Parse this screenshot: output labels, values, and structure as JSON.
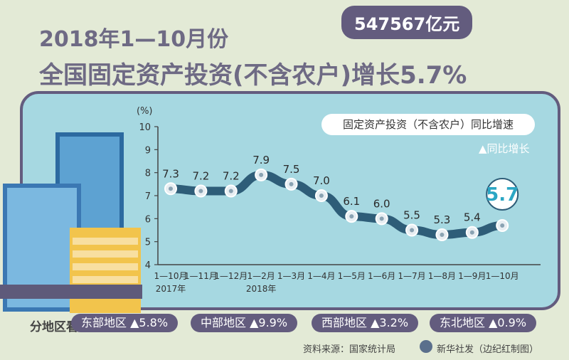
{
  "title": {
    "line1": "2018年1—10月份",
    "line2": "全国固定资产投资(不含农户)增长5.7%",
    "amount": "547567亿元"
  },
  "legend": {
    "series_name": "固定资产投资（不含农户）同比增速",
    "subtitle": "▲同比增长"
  },
  "chart_data": {
    "type": "line",
    "y_unit": "(%)",
    "ylim": [
      4,
      10
    ],
    "yticks": [
      4,
      5,
      6,
      7,
      8,
      9,
      10
    ],
    "categories": [
      "1—10月",
      "1—11月",
      "1—12月",
      "1—2月",
      "1—3月",
      "1—4月",
      "1—5月",
      "1—6月",
      "1—7月",
      "1—8月",
      "1—9月",
      "1—10月"
    ],
    "year_labels": [
      {
        "index": 0,
        "text": "2017年"
      },
      {
        "index": 3,
        "text": "2018年"
      }
    ],
    "series": [
      {
        "name": "固定资产投资（不含农户）同比增速",
        "values": [
          7.3,
          7.2,
          7.2,
          7.9,
          7.5,
          7.0,
          6.1,
          6.0,
          5.5,
          5.3,
          5.4,
          5.7
        ],
        "labels": [
          "7.3",
          "7.2",
          "7.2",
          "7.9",
          "7.5",
          "7.0",
          "6.1",
          "6.0",
          "5.5",
          "5.3",
          "5.4",
          "5.7"
        ]
      }
    ],
    "highlight_index": 11,
    "colors": {
      "line": "#2e5d78",
      "marker": "#e8eef2",
      "label": "#2a2a2a",
      "highlight": "#ffffff"
    }
  },
  "regions": {
    "heading": "分地区看",
    "items": [
      {
        "name": "东部地区",
        "value": "▲5.8%"
      },
      {
        "name": "中部地区",
        "value": "▲9.9%"
      },
      {
        "name": "西部地区",
        "value": "▲3.2%"
      },
      {
        "name": "东北地区",
        "value": "▲0.9%"
      }
    ]
  },
  "footer": {
    "source": "资料来源：国家统计局",
    "credit": "新华社发（边纪红制图）"
  }
}
